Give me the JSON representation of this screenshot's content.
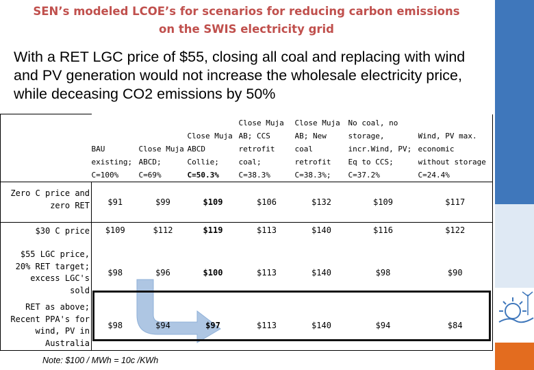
{
  "title": {
    "line1": "SEN’s modeled LCOE’s for scenarios for reducing carbon emissions",
    "line2": "on the SWIS electricity grid"
  },
  "lead": "With a RET LGC price of $55, closing all coal and replacing with wind and PV generation would not increase the wholesale electricity price, while deceasing CO2 emissions by 50%",
  "table": {
    "columns": [
      {
        "lines": [
          "BAU",
          "existing;",
          "C=100%"
        ],
        "bold_line": -1
      },
      {
        "lines": [
          "Close Muja",
          "ABCD;",
          "C=69%"
        ],
        "bold_line": -1
      },
      {
        "lines": [
          "Close Muja",
          "ABCD",
          "Collie;",
          "C=50.3%"
        ],
        "bold_line": 3
      },
      {
        "lines": [
          "Close Muja",
          "AB; CCS",
          "retrofit",
          "coal;",
          "C=38.3%"
        ],
        "bold_line": -1
      },
      {
        "lines": [
          "Close Muja",
          "AB; New",
          "coal retrofit",
          "C=38.3%;"
        ],
        "bold_line": -1
      },
      {
        "lines": [
          "No coal, no",
          "storage,",
          "incr.Wind, PV;",
          "Eq to CCS;",
          "C=37.2%"
        ],
        "bold_line": -1
      },
      {
        "lines": [
          "Wind, PV max.",
          "economic",
          "without storage",
          "C=24.4%"
        ],
        "bold_line": -1
      }
    ],
    "rows": [
      {
        "label_lines": [
          "Zero C price and",
          "zero RET"
        ],
        "values": [
          "$91",
          "$99",
          "$109",
          "$106",
          "$132",
          "$109",
          "$117"
        ]
      },
      {
        "label_lines": [
          "$30 C price"
        ],
        "values": [
          "$109",
          "$112",
          "$119",
          "$113",
          "$140",
          "$116",
          "$122"
        ]
      },
      {
        "label_lines": [
          "$55 LGC price,",
          "20% RET target;",
          "excess LGC's",
          "sold"
        ],
        "values": [
          "$98",
          "$96",
          "$100",
          "$113",
          "$140",
          "$98",
          "$90"
        ]
      },
      {
        "label_lines": [
          "RET as above;",
          "Recent PPA's for",
          "wind, PV in",
          "Australia"
        ],
        "values": [
          "$98",
          "$94",
          "$97",
          "$113",
          "$140",
          "$94",
          "$84"
        ]
      }
    ]
  },
  "note": "Note:  $100 / MWh  =  10c /KWh",
  "colors": {
    "title": "#c0504d",
    "band_blue": "#3f77bb",
    "band_orange": "#e36c1f",
    "arrow": "#aec6e3"
  }
}
